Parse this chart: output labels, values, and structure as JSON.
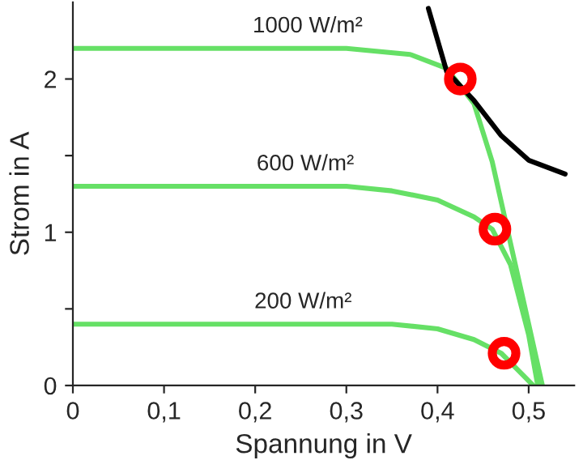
{
  "chart_data": {
    "type": "line",
    "xlabel": "Spannung in V",
    "ylabel": "Strom in A",
    "xlim": [
      0,
      0.55
    ],
    "ylim": [
      0,
      2.5
    ],
    "xticks": [
      {
        "value": 0,
        "label": "0"
      },
      {
        "value": 0.1,
        "label": "0,1"
      },
      {
        "value": 0.2,
        "label": "0,2"
      },
      {
        "value": 0.3,
        "label": "0,3"
      },
      {
        "value": 0.4,
        "label": "0,4"
      },
      {
        "value": 0.5,
        "label": "0,5"
      }
    ],
    "yticks": [
      0,
      {
        "value": 0.5,
        "label": null
      },
      1,
      {
        "value": 1.5,
        "label": null
      },
      2
    ],
    "grid": false,
    "legend": false,
    "line_style": "solid",
    "series": [
      {
        "name": "1000 W/m²",
        "color": "#66e066",
        "x": [
          0,
          0.3,
          0.37,
          0.41,
          0.44,
          0.46,
          0.48,
          0.5,
          0.515
        ],
        "values": [
          2.2,
          2.2,
          2.16,
          2.07,
          1.84,
          1.46,
          0.93,
          0.4,
          0
        ]
      },
      {
        "name": "600 W/m²",
        "color": "#66e066",
        "x": [
          0,
          0.3,
          0.35,
          0.4,
          0.44,
          0.46,
          0.48,
          0.5,
          0.51
        ],
        "values": [
          1.3,
          1.3,
          1.27,
          1.21,
          1.1,
          1.02,
          0.79,
          0.33,
          0
        ]
      },
      {
        "name": "200 W/m²",
        "color": "#66e066",
        "x": [
          0,
          0.3,
          0.35,
          0.4,
          0.44,
          0.47,
          0.49,
          0.505
        ],
        "values": [
          0.4,
          0.4,
          0.4,
          0.37,
          0.3,
          0.21,
          0.09,
          0
        ]
      },
      {
        "color": "#000000",
        "x": [
          0.39,
          0.41,
          0.44,
          0.47,
          0.5,
          0.54
        ],
        "values": [
          2.46,
          2.05,
          1.86,
          1.63,
          1.47,
          1.38
        ]
      },
      {
        "type": "scatter",
        "marker": "circle",
        "color": "#ff0000",
        "x": [
          0.425,
          0.463,
          0.473
        ],
        "values": [
          2.0,
          1.02,
          0.21
        ]
      }
    ]
  }
}
